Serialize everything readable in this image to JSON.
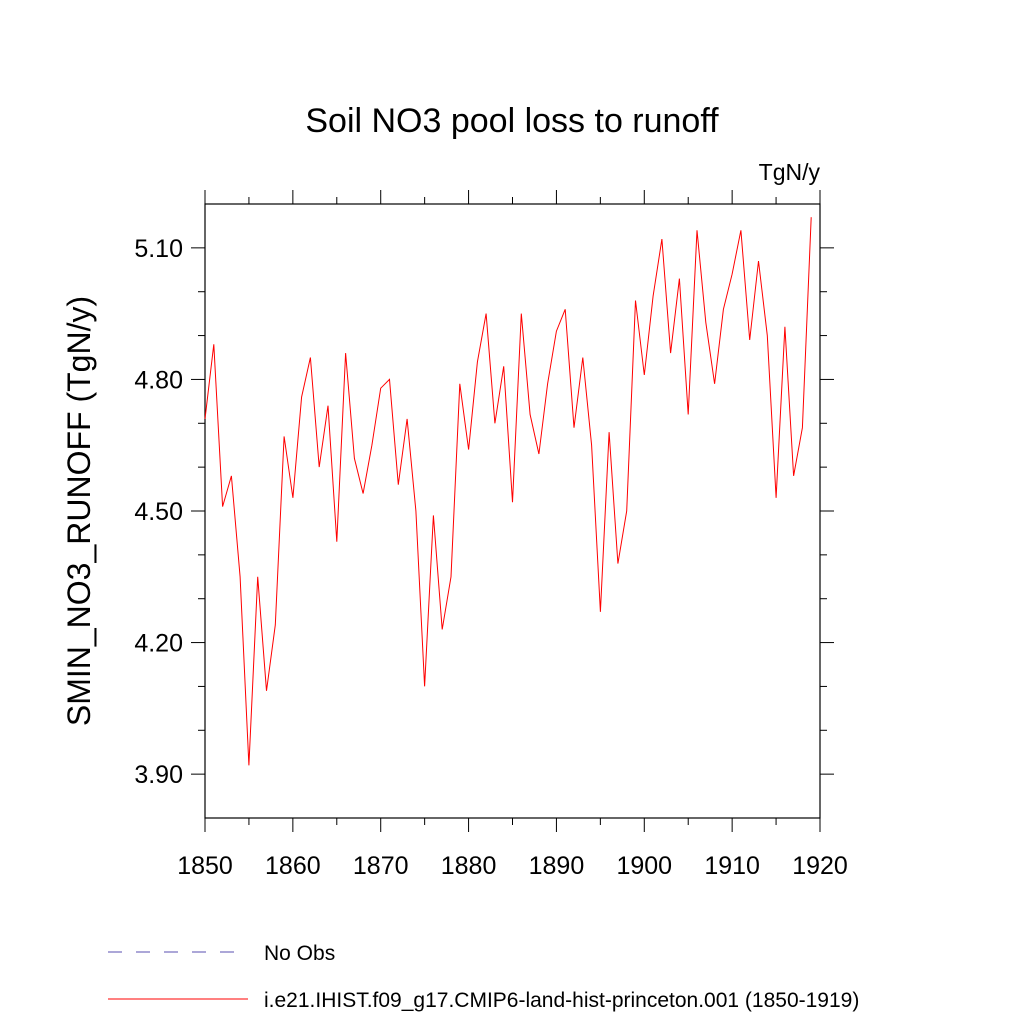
{
  "chart_data": {
    "type": "line",
    "title": "Soil NO3 pool loss to runoff",
    "units_label": "TgN/y",
    "ylabel": "SMIN_NO3_RUNOFF  (TgN/y)",
    "xlabel": "",
    "xlim": [
      1850,
      1920
    ],
    "ylim": [
      3.8,
      5.2
    ],
    "xticks": [
      1850,
      1860,
      1870,
      1880,
      1890,
      1900,
      1910,
      1920
    ],
    "xtick_labels": [
      "1850",
      "1860",
      "1870",
      "1880",
      "1890",
      "1900",
      "1910",
      "1920"
    ],
    "yticks": [
      3.9,
      4.2,
      4.5,
      4.8,
      5.1
    ],
    "ytick_labels": [
      "3.90",
      "4.20",
      "4.50",
      "4.80",
      "5.10"
    ],
    "grid": false,
    "legend_placement": "bottom-left",
    "series": [
      {
        "name": "i.e21.IHIST.f09_g17.CMIP6-land-hist-princeton.001 (1850-1919)",
        "color": "#ff0000",
        "style": "solid",
        "x": [
          1850,
          1851,
          1852,
          1853,
          1854,
          1855,
          1856,
          1857,
          1858,
          1859,
          1860,
          1861,
          1862,
          1863,
          1864,
          1865,
          1866,
          1867,
          1868,
          1869,
          1870,
          1871,
          1872,
          1873,
          1874,
          1875,
          1876,
          1877,
          1878,
          1879,
          1880,
          1881,
          1882,
          1883,
          1884,
          1885,
          1886,
          1887,
          1888,
          1889,
          1890,
          1891,
          1892,
          1893,
          1894,
          1895,
          1896,
          1897,
          1898,
          1899,
          1900,
          1901,
          1902,
          1903,
          1904,
          1905,
          1906,
          1907,
          1908,
          1909,
          1910,
          1911,
          1912,
          1913,
          1914,
          1915,
          1916,
          1917,
          1918,
          1919
        ],
        "y": [
          4.71,
          4.88,
          4.51,
          4.58,
          4.35,
          3.92,
          4.35,
          4.09,
          4.24,
          4.67,
          4.53,
          4.76,
          4.85,
          4.6,
          4.74,
          4.43,
          4.86,
          4.62,
          4.54,
          4.65,
          4.78,
          4.8,
          4.56,
          4.71,
          4.5,
          4.1,
          4.49,
          4.23,
          4.35,
          4.79,
          4.64,
          4.84,
          4.95,
          4.7,
          4.83,
          4.52,
          4.95,
          4.72,
          4.63,
          4.79,
          4.91,
          4.96,
          4.69,
          4.85,
          4.65,
          4.27,
          4.68,
          4.38,
          4.5,
          4.98,
          4.81,
          4.99,
          5.12,
          4.86,
          5.03,
          4.72,
          5.14,
          4.93,
          4.79,
          4.96,
          5.04,
          5.14,
          4.89,
          5.07,
          4.9,
          4.53,
          4.92,
          4.58,
          4.69,
          5.17
        ]
      },
      {
        "name": "No Obs",
        "color": "#5a4fb0",
        "style": "dashed",
        "x": [],
        "y": []
      }
    ]
  }
}
